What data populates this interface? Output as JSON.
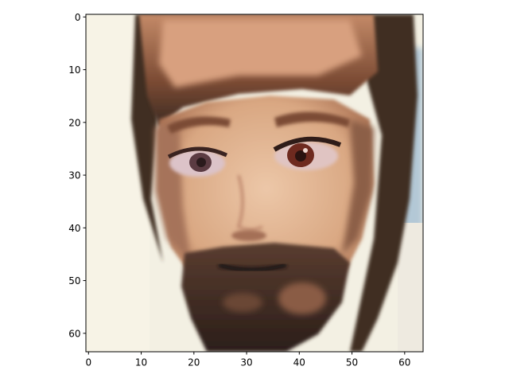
{
  "chart_data": {
    "type": "heatmap",
    "title": "",
    "xlabel": "",
    "ylabel": "",
    "xlim": [
      -0.5,
      63.5
    ],
    "ylim": [
      63.5,
      -0.5
    ],
    "grid": false,
    "x_ticks": [
      0,
      10,
      20,
      30,
      40,
      50,
      60
    ],
    "y_ticks": [
      0,
      10,
      20,
      30,
      40,
      50,
      60
    ],
    "x_tick_labels": [
      "0",
      "10",
      "20",
      "30",
      "40",
      "50",
      "60"
    ],
    "y_tick_labels": [
      "0",
      "10",
      "20",
      "30",
      "40",
      "50",
      "60"
    ],
    "image_content": "64x64 pixel RGB image of a stylized face with light brown hair, large eyes and a dark beard",
    "colors": {
      "background": "#f3f0e3",
      "hair_dark": "#3b2b22",
      "hair_light": "#8a5a3e",
      "skin": "#e2b896",
      "skin_shadow": "#b88566",
      "beard": "#2f221c",
      "right_edge_blue": "#a9c3d6"
    }
  }
}
